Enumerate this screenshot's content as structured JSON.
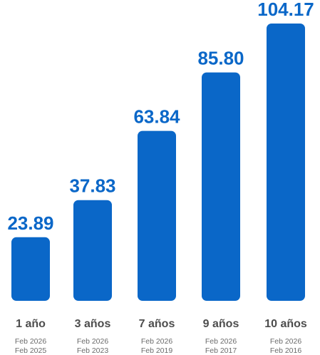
{
  "chart_data": {
    "type": "bar",
    "categories": [
      "1 año",
      "3 años",
      "7 años",
      "9 años",
      "10 años"
    ],
    "values": [
      23.89,
      37.83,
      63.84,
      85.8,
      104.17
    ],
    "value_labels": [
      "23.89",
      "37.83",
      "63.84",
      "85.80",
      "104.17"
    ],
    "periods": [
      [
        "Feb 2026",
        "Feb 2025"
      ],
      [
        "Feb 2026",
        "Feb 2023"
      ],
      [
        "Feb 2026",
        "Feb 2019"
      ],
      [
        "Feb 2026",
        "Feb 2017"
      ],
      [
        "Feb 2026",
        "Feb 2016"
      ]
    ],
    "title": "",
    "xlabel": "",
    "ylabel": "",
    "ylim": [
      0,
      104.17
    ],
    "grid": false,
    "legend": "none",
    "colors": {
      "bar": "#0a67c8",
      "value_label": "#0a67c8",
      "category_label": "#4d4d4d",
      "period_label": "#6b6b6b"
    }
  }
}
